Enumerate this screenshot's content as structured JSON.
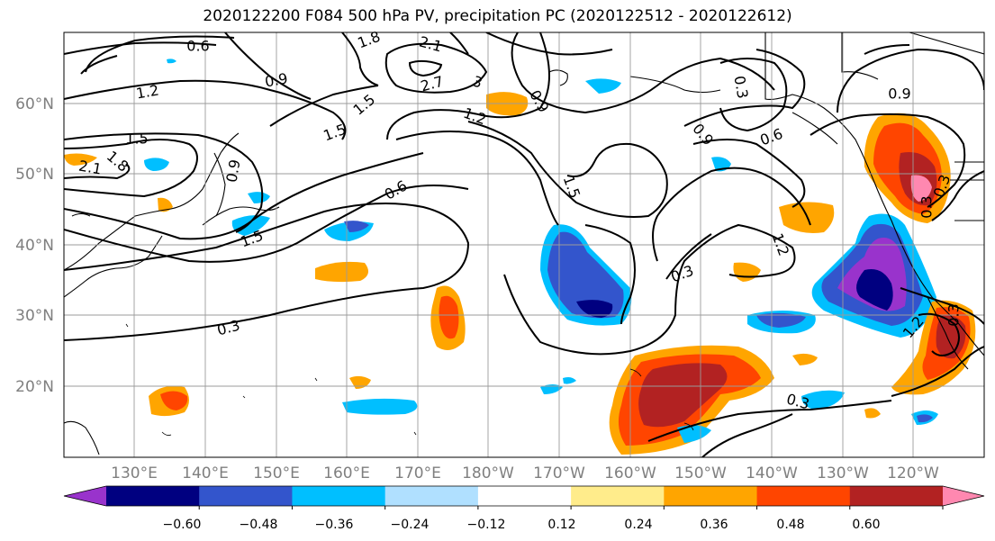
{
  "title": "2020122200 F084 500 hPa PV, precipitation PC (2020122512 - 2020122612)",
  "lat_labels": [
    "60°N",
    "50°N",
    "40°N",
    "30°N",
    "20°N"
  ],
  "lon_labels": [
    "130°E",
    "140°E",
    "150°E",
    "160°E",
    "170°E",
    "180°W",
    "170°W",
    "160°W",
    "150°W",
    "140°W",
    "130°W",
    "120°W"
  ],
  "colorbar": {
    "ticks": [
      "−0.60",
      "−0.48",
      "−0.36",
      "−0.24",
      "−0.12",
      "0.12",
      "0.24",
      "0.36",
      "0.48",
      "0.60"
    ],
    "colors": [
      "#9933cc",
      "#000080",
      "#3355cc",
      "#00bfff",
      "#b0e0ff",
      "#ffffff",
      "#ffec8b",
      "#ffa500",
      "#ff4500",
      "#b22222",
      "#ff88b0"
    ]
  },
  "contour_labels": [
    "0.6",
    "1.8",
    "2.1",
    "0.9",
    "2.7",
    "3",
    "1.2",
    "0.9",
    "0.3",
    "1.5",
    "1.5",
    "1.2",
    "0.9",
    "0.6",
    "0.9",
    "1.5",
    "2.1",
    "1.8",
    "0.9",
    "1.2",
    "1.5",
    "0.6",
    "1.5",
    "0.3",
    "1.2",
    "0.3",
    "0.3",
    "0.3",
    "0.3",
    "0.3"
  ]
}
